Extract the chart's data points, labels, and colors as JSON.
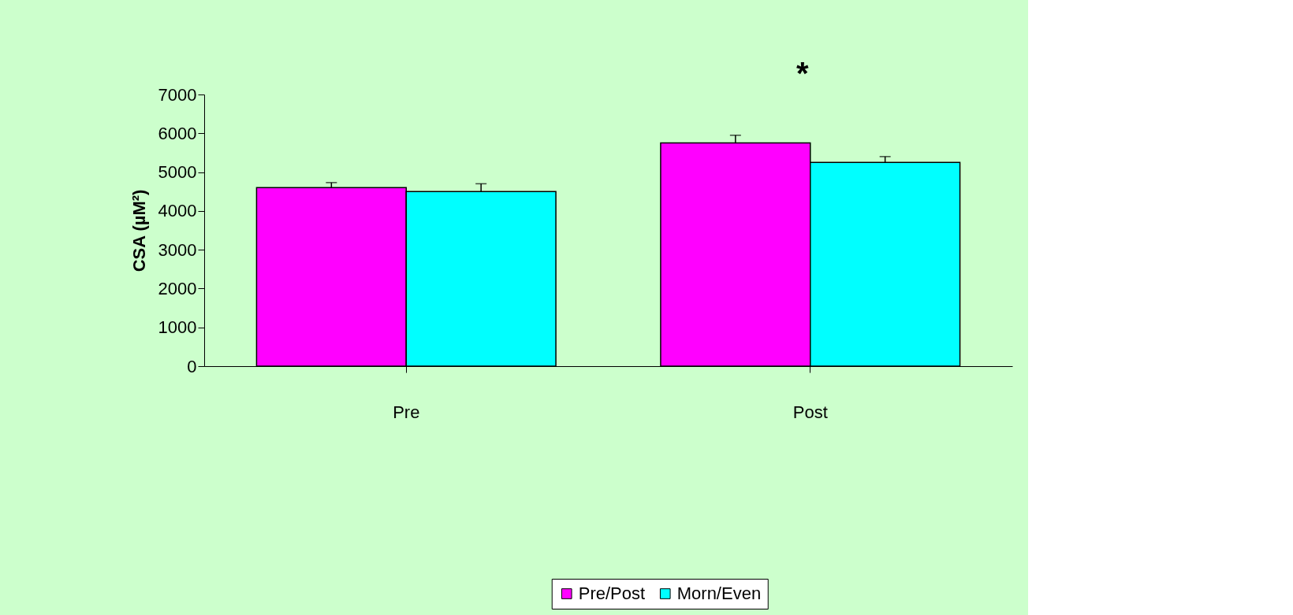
{
  "chart_data": {
    "type": "bar",
    "ylabel": "CSA (µM²)",
    "categories": [
      "Pre",
      "Post"
    ],
    "series": [
      {
        "name": "Pre/Post",
        "color": "#ff00ff",
        "values": [
          4600,
          5750
        ],
        "errors": [
          [
            4600,
            4730
          ],
          [
            5750,
            5950
          ]
        ]
      },
      {
        "name": "Morn/Even",
        "color": "#00ffff",
        "values": [
          4500,
          5250
        ],
        "errors": [
          [
            4500,
            4700
          ],
          [
            5250,
            5400
          ]
        ]
      }
    ],
    "ylim": [
      0,
      7000
    ],
    "yticks": [
      0,
      1000,
      2000,
      3000,
      4000,
      5000,
      6000,
      7000
    ],
    "grid": false,
    "legend": "bottom",
    "annotations": [
      "*"
    ]
  }
}
